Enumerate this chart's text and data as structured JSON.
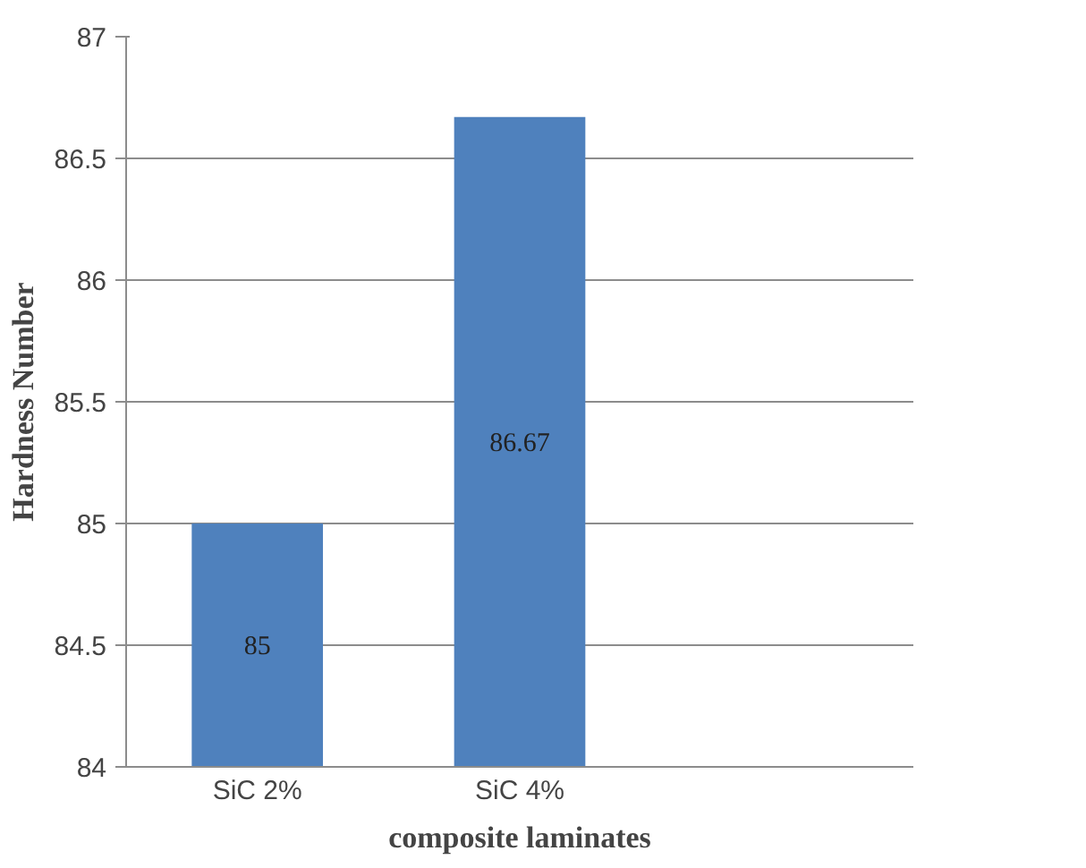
{
  "chart_data": {
    "type": "bar",
    "xlabel": "composite laminates",
    "ylabel": "Hardness Number",
    "categories": [
      "SiC 2%",
      "SiC 4%",
      null
    ],
    "values": [
      85,
      86.67,
      null
    ],
    "color": "#4f81bd",
    "ylim": [
      84,
      87
    ],
    "yticks": [
      84,
      84.5,
      85,
      85.5,
      86,
      86.5,
      87
    ],
    "grid": "y",
    "data_labels": true
  }
}
